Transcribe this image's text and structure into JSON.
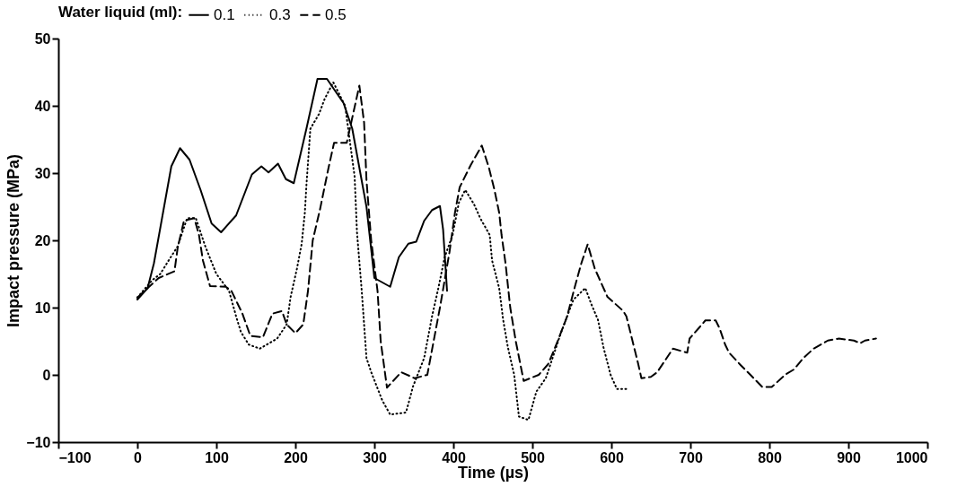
{
  "chart_data": {
    "type": "line",
    "xlabel": "Time (µs)",
    "ylabel": "Impact pressure (MPa)",
    "legend_title": "Water liquid (ml):",
    "legend": "top",
    "grid": false,
    "marker": "none",
    "xlim": [
      -100,
      1000
    ],
    "xticks": [
      -100,
      0,
      100,
      200,
      300,
      400,
      500,
      600,
      700,
      800,
      900,
      1000
    ],
    "ylim": [
      -10,
      50
    ],
    "yticks": [
      -10,
      0,
      10,
      20,
      30,
      40,
      50
    ],
    "series": [
      {
        "name": "0.1",
        "color": "#000000",
        "line_style": "solid",
        "x": [
          0,
          13,
          21,
          43,
          54,
          66,
          80,
          94,
          106,
          125,
          145,
          157,
          166,
          178,
          188,
          198,
          214,
          228,
          240,
          261,
          272,
          290,
          300,
          320,
          331,
          343,
          353,
          363,
          373,
          383,
          387,
          392
        ],
        "values": [
          11.2,
          12.9,
          16.6,
          31,
          33.7,
          32,
          27.5,
          22.5,
          21.2,
          23.7,
          29.8,
          31,
          30.1,
          31.4,
          29.1,
          28.5,
          36.6,
          44,
          44,
          40.4,
          36.6,
          25,
          14.4,
          13.1,
          17.5,
          19.5,
          19.8,
          22.9,
          24.5,
          25.1,
          21.6,
          12.5
        ]
      },
      {
        "name": "0.3",
        "color": "#000000",
        "line_style": "dotted",
        "x": [
          0,
          19,
          29,
          39,
          51,
          63,
          74,
          86,
          100,
          116,
          125,
          131,
          141,
          155,
          177,
          189,
          194,
          202,
          208,
          212,
          214,
          219,
          230,
          237,
          248,
          263,
          275,
          278,
          284,
          290,
          296,
          310,
          320,
          340,
          349,
          363,
          373,
          381,
          389,
          399,
          407,
          415,
          426,
          434,
          446,
          449,
          458,
          463,
          469,
          477,
          483,
          495,
          505,
          517,
          536,
          552,
          567,
          575,
          583,
          590,
          599,
          607,
          619
        ],
        "values": [
          11.5,
          14.1,
          15,
          16.9,
          19.1,
          23.3,
          23.3,
          19.1,
          15,
          12.5,
          8.7,
          6.4,
          4.5,
          3.9,
          5.4,
          7.5,
          11.6,
          15.8,
          19.5,
          24.1,
          28.2,
          36.6,
          38.8,
          41,
          43.5,
          40,
          29.5,
          21.2,
          12.5,
          2.5,
          0.4,
          -3.8,
          -5.9,
          -5.6,
          -1.7,
          2.5,
          8.7,
          12.9,
          17.5,
          20.8,
          25.6,
          27.5,
          25.4,
          23.3,
          20.8,
          17,
          12.9,
          8.2,
          4.1,
          0,
          -6.2,
          -6.7,
          -2.5,
          -0.5,
          6.2,
          11.2,
          12.9,
          10.4,
          8.2,
          4.1,
          0,
          -2.1,
          -2.1
        ]
      },
      {
        "name": "0.5",
        "color": "#000000",
        "line_style": "dashed",
        "x": [
          0,
          27,
          47,
          51,
          59,
          72,
          78,
          83,
          92,
          112,
          119,
          133,
          143,
          159,
          171,
          183,
          189,
          200,
          210,
          216,
          222,
          231,
          242,
          249,
          265,
          281,
          287,
          290,
          296,
          304,
          308,
          316,
          334,
          351,
          367,
          375,
          383,
          395,
          402,
          408,
          422,
          436,
          445,
          452,
          458,
          461,
          466,
          472,
          479,
          489,
          508,
          520,
          532,
          544,
          554,
          562,
          570,
          579,
          595,
          615,
          619,
          626,
          634,
          638,
          650,
          658,
          670,
          678,
          696,
          699,
          711,
          719,
          732,
          737,
          744,
          749,
          764,
          776,
          791,
          803,
          821,
          831,
          843,
          856,
          874,
          888,
          907,
          915,
          921,
          935
        ],
        "values": [
          11.5,
          14.4,
          15.4,
          18.9,
          22.9,
          23.3,
          20.8,
          17,
          13.2,
          13.1,
          12.5,
          9.1,
          5.8,
          5.6,
          9.1,
          9.5,
          7.5,
          6.2,
          7.5,
          12.5,
          20,
          24.5,
          30.8,
          34.5,
          34.5,
          43,
          37.5,
          29,
          20,
          12.5,
          5,
          -1.9,
          0.4,
          -0.5,
          0,
          5,
          10,
          18.2,
          24.1,
          27.9,
          31.2,
          34.1,
          30.8,
          27.5,
          24.1,
          20.8,
          16.6,
          10,
          5,
          -0.9,
          0,
          1.6,
          5,
          8.7,
          13.2,
          16.6,
          19.4,
          15.8,
          11.6,
          9.5,
          8.7,
          5.4,
          1.6,
          -0.5,
          -0.3,
          0.4,
          2.5,
          3.9,
          3.3,
          5.4,
          7,
          8.1,
          8.1,
          6.9,
          4.5,
          3.3,
          1.4,
          0,
          -1.8,
          -1.8,
          0.1,
          0.8,
          2.5,
          3.9,
          5.1,
          5.4,
          5.1,
          4.7,
          5.1,
          5.4
        ]
      }
    ]
  }
}
